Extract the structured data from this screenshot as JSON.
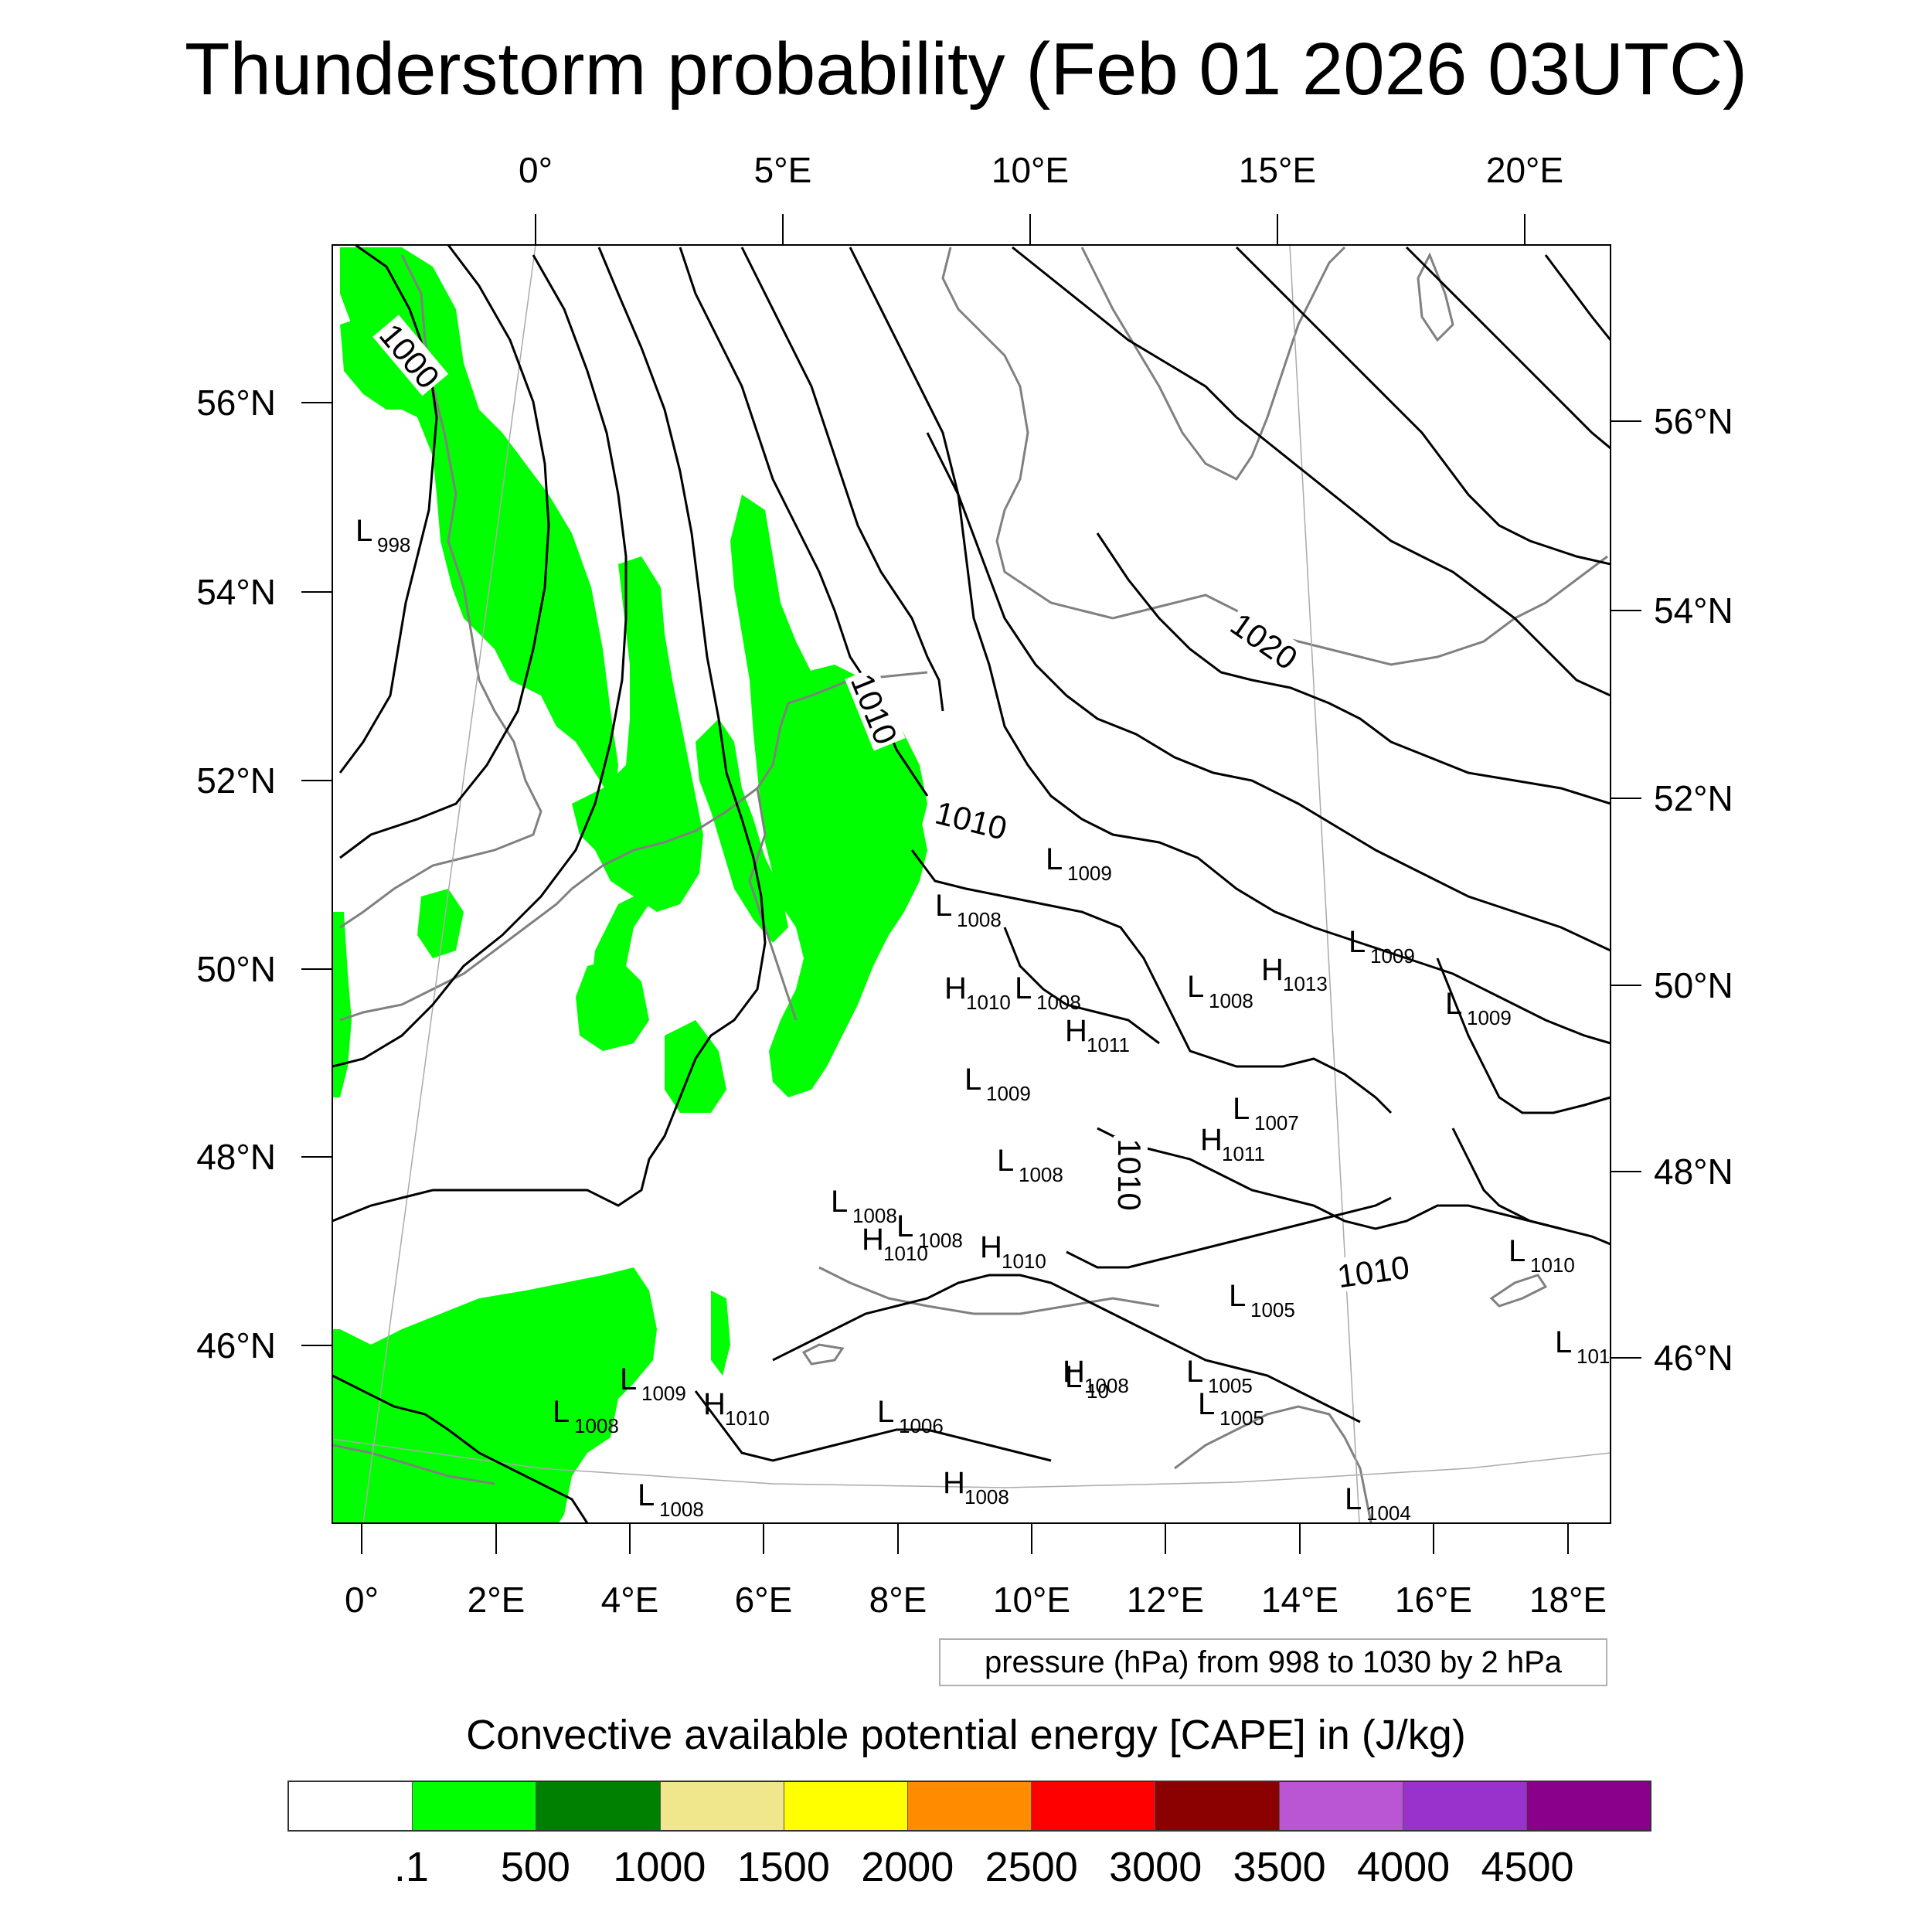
{
  "title": "Thunderstorm probability (Feb 01 2026 03UTC)",
  "top_lon_labels": [
    "0°",
    "5°E",
    "10°E",
    "15°E",
    "20°E"
  ],
  "bottom_lon_labels": [
    "0°",
    "2°E",
    "4°E",
    "6°E",
    "8°E",
    "10°E",
    "12°E",
    "14°E",
    "16°E",
    "18°E"
  ],
  "left_lat_labels": [
    "56°N",
    "54°N",
    "52°N",
    "50°N",
    "48°N",
    "46°N"
  ],
  "right_lat_labels": [
    "56°N",
    "54°N",
    "52°N",
    "50°N",
    "48°N",
    "46°N"
  ],
  "isobar_labels": [
    "1000",
    "1010",
    "1010",
    "1020",
    "1010",
    "1010"
  ],
  "pressure_centers": [
    {
      "type": "L",
      "value": "998"
    },
    {
      "type": "L",
      "value": "1009"
    },
    {
      "type": "L",
      "value": "1008"
    },
    {
      "type": "L",
      "value": "1009"
    },
    {
      "type": "H",
      "value": "1010"
    },
    {
      "type": "L",
      "value": "1008"
    },
    {
      "type": "H",
      "value": "1011"
    },
    {
      "type": "L",
      "value": "1008"
    },
    {
      "type": "H",
      "value": "1013"
    },
    {
      "type": "L",
      "value": "1009"
    },
    {
      "type": "L",
      "value": "1009"
    },
    {
      "type": "L",
      "value": "1007"
    },
    {
      "type": "H",
      "value": "1011"
    },
    {
      "type": "L",
      "value": "1008"
    },
    {
      "type": "L",
      "value": "1008"
    },
    {
      "type": "H",
      "value": "1010"
    },
    {
      "type": "L",
      "value": "1008"
    },
    {
      "type": "H",
      "value": "1010"
    },
    {
      "type": "L",
      "value": "1005"
    },
    {
      "type": "L",
      "value": "1010"
    },
    {
      "type": "L",
      "value": "1009"
    },
    {
      "type": "H",
      "value": "1010"
    },
    {
      "type": "L",
      "value": "1008"
    },
    {
      "type": "L",
      "value": "1006"
    },
    {
      "type": "L",
      "value": "1005"
    },
    {
      "type": "H",
      "value": "1008"
    },
    {
      "type": "L",
      "value": "1005"
    },
    {
      "type": "H",
      "value": "1008"
    },
    {
      "type": "L",
      "value": "1008"
    },
    {
      "type": "L",
      "value": "1004"
    },
    {
      "type": "L",
      "value": "10"
    },
    {
      "type": "L",
      "value": "101"
    }
  ],
  "pressure_note": "pressure (hPa) from 998 to 1030 by 2 hPa",
  "colorbar": {
    "title": "Convective available potential energy [CAPE] in (J/kg)",
    "colors": [
      "#ffffff",
      "#00ff00",
      "#008000",
      "#f0e68c",
      "#ffff00",
      "#ff8c00",
      "#ff0000",
      "#8b0000",
      "#ba55d3",
      "#9932cc",
      "#8b008b"
    ],
    "tick_labels": [
      ".1",
      "500",
      "1000",
      "1500",
      "2000",
      "2500",
      "3000",
      "3500",
      "4000",
      "4500"
    ]
  },
  "cape_fill_color": "#00ff00"
}
